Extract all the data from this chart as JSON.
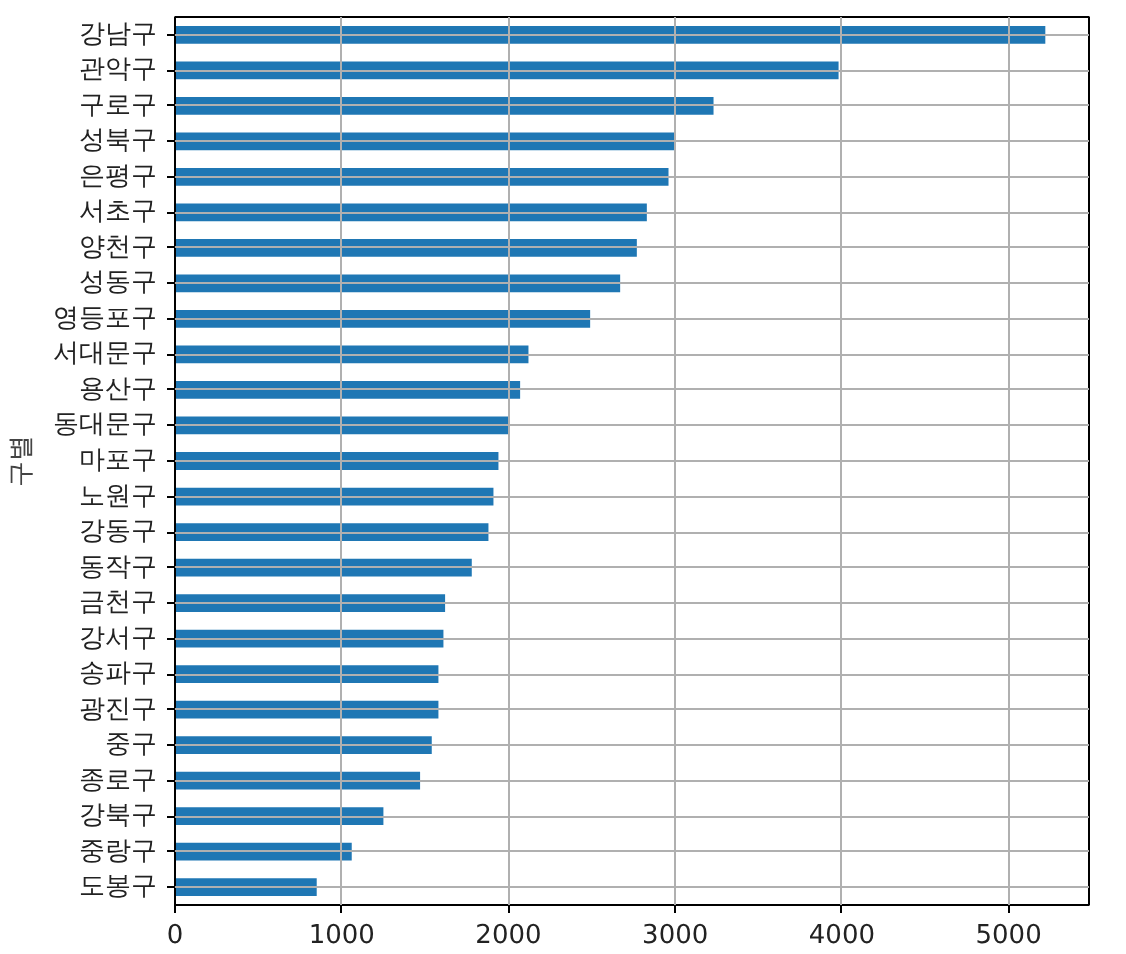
{
  "chart_data": {
    "type": "bar",
    "orientation": "horizontal",
    "ylabel": "구별",
    "categories": [
      "강남구",
      "관악구",
      "구로구",
      "성북구",
      "은평구",
      "서초구",
      "양천구",
      "성동구",
      "영등포구",
      "서대문구",
      "용산구",
      "동대문구",
      "마포구",
      "노원구",
      "강동구",
      "동작구",
      "금천구",
      "강서구",
      "송파구",
      "광진구",
      "중구",
      "종로구",
      "강북구",
      "중랑구",
      "도봉구"
    ],
    "values": [
      5220,
      3980,
      3230,
      3000,
      2960,
      2830,
      2770,
      2670,
      2490,
      2120,
      2070,
      2000,
      1940,
      1910,
      1880,
      1780,
      1620,
      1610,
      1580,
      1580,
      1540,
      1470,
      1250,
      1060,
      850
    ],
    "color": "#1f77b4",
    "xlim": [
      0,
      5482
    ],
    "xticks": [
      0,
      1000,
      2000,
      3000,
      4000,
      5000
    ],
    "grid": true
  }
}
